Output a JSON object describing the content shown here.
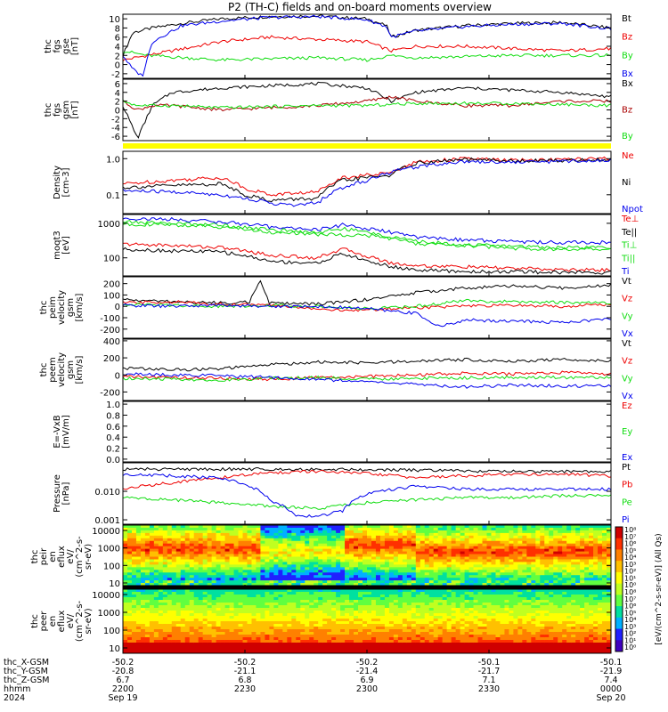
{
  "title": "P2 (TH-C) fields and on-board moments overview",
  "colors": {
    "black": "#000000",
    "red": "#ee0000",
    "green": "#11dd11",
    "blue": "#0000ee",
    "darkred": "#aa0000",
    "yellow": "#ffff00"
  },
  "chart_data": [
    {
      "id": "fgs_gse",
      "type": "line",
      "ylabel": [
        "thc",
        "fgs",
        "gse",
        "[nT]"
      ],
      "yticks": [
        "10",
        "8",
        "6",
        "4",
        "2",
        "0",
        "-2"
      ],
      "ylim": [
        -3,
        11
      ],
      "series": [
        {
          "name": "Bt",
          "color": "#000000",
          "x": [
            0,
            0.02,
            0.06,
            0.12,
            0.2,
            0.3,
            0.4,
            0.5,
            0.54,
            0.55,
            0.6,
            0.7,
            0.8,
            0.9,
            1.0
          ],
          "values": [
            2,
            7,
            8,
            9,
            10,
            10.5,
            10.6,
            10,
            8.5,
            6,
            7.5,
            8.5,
            9,
            9.2,
            8
          ]
        },
        {
          "name": "Bz",
          "color": "#ee0000",
          "x": [
            0,
            0.05,
            0.2,
            0.3,
            0.4,
            0.5,
            0.55,
            0.6,
            0.7,
            0.8,
            0.9,
            1.0
          ],
          "values": [
            1,
            2,
            5,
            6,
            5.5,
            5,
            3,
            4,
            4,
            3.5,
            3,
            3.5
          ]
        },
        {
          "name": "By",
          "color": "#11dd11",
          "x": [
            0,
            0.05,
            0.2,
            0.4,
            0.5,
            0.55,
            0.6,
            0.8,
            1.0
          ],
          "values": [
            3,
            2,
            1,
            1.5,
            1,
            2,
            1.5,
            2,
            2
          ]
        },
        {
          "name": "Bx",
          "color": "#0000ee",
          "x": [
            0,
            0.02,
            0.04,
            0.06,
            0.12,
            0.2,
            0.3,
            0.4,
            0.5,
            0.54,
            0.55,
            0.6,
            0.7,
            0.8,
            0.9,
            1.0
          ],
          "values": [
            2,
            -1,
            -2.5,
            5,
            8.5,
            9.5,
            10.3,
            10.5,
            9.8,
            8.3,
            6,
            7.3,
            8.3,
            8.8,
            9,
            7.8
          ]
        }
      ]
    },
    {
      "id": "fgs_gsm",
      "type": "line",
      "ylabel": [
        "thc",
        "fgs",
        "gsm",
        "[nT]"
      ],
      "yticks": [
        "6",
        "4",
        "2",
        "0",
        "-2",
        "-4",
        "-6"
      ],
      "ylim": [
        -7,
        7
      ],
      "series": [
        {
          "name": "Bx",
          "color": "#000000",
          "x": [
            0,
            0.03,
            0.06,
            0.1,
            0.2,
            0.3,
            0.4,
            0.5,
            0.55,
            0.6,
            0.7,
            0.8,
            0.9,
            1.0
          ],
          "values": [
            1,
            -6.5,
            1,
            4,
            5,
            5.5,
            6,
            5,
            2,
            4,
            5,
            4.5,
            4,
            3
          ]
        },
        {
          "name": "Bz",
          "color": "#aa0000",
          "x": [
            0,
            0.03,
            0.06,
            0.1,
            0.2,
            0.3,
            0.4,
            0.5,
            0.55,
            0.6,
            0.7,
            0.8,
            0.9,
            1.0
          ],
          "values": [
            2,
            0,
            1,
            1,
            0,
            0.5,
            1,
            2,
            3,
            2,
            1,
            1,
            2,
            2
          ]
        },
        {
          "name": "By",
          "color": "#11dd11",
          "x": [
            0,
            0.03,
            0.1,
            0.2,
            0.4,
            0.5,
            0.6,
            0.8,
            1.0
          ],
          "values": [
            2,
            1,
            1,
            0.5,
            1,
            1,
            1.5,
            1.5,
            1
          ]
        }
      ]
    },
    {
      "id": "density",
      "type": "line",
      "yscale": "log",
      "ylabel": [
        "Density",
        "[cm-3]"
      ],
      "yticks": [
        "1.0",
        "0.1"
      ],
      "ylim": [
        0.03,
        1.6
      ],
      "series": [
        {
          "name": "Ne",
          "color": "#ee0000",
          "x": [
            0,
            0.1,
            0.2,
            0.25,
            0.3,
            0.4,
            0.45,
            0.5,
            0.55,
            0.6,
            0.7,
            0.8,
            0.9,
            1.0
          ],
          "values": [
            0.2,
            0.25,
            0.3,
            0.15,
            0.1,
            0.12,
            0.3,
            0.35,
            0.4,
            0.8,
            1.0,
            0.9,
            0.95,
            1.0
          ]
        },
        {
          "name": "Ni",
          "color": "#000000",
          "x": [
            0,
            0.1,
            0.2,
            0.25,
            0.3,
            0.4,
            0.45,
            0.5,
            0.55,
            0.6,
            0.7,
            0.8,
            0.9,
            1.0
          ],
          "values": [
            0.16,
            0.18,
            0.2,
            0.1,
            0.07,
            0.08,
            0.25,
            0.3,
            0.35,
            0.75,
            0.95,
            0.85,
            0.9,
            0.95
          ]
        },
        {
          "name": "Npot",
          "color": "#0000ee",
          "x": [
            0,
            0.1,
            0.2,
            0.3,
            0.35,
            0.4,
            0.5,
            0.6,
            0.7,
            0.8,
            0.9,
            1.0
          ],
          "values": [
            0.13,
            0.12,
            0.1,
            0.06,
            0.05,
            0.06,
            0.25,
            0.6,
            0.85,
            0.8,
            0.85,
            0.9
          ]
        }
      ]
    },
    {
      "id": "temperature",
      "type": "line",
      "yscale": "log",
      "ylabel": [
        "moqt3",
        "[eV]"
      ],
      "yticks": [
        "1000",
        "100"
      ],
      "ylim": [
        30,
        1800
      ],
      "series": [
        {
          "name": "Te⊥",
          "color": "#ee0000",
          "x": [
            0,
            0.1,
            0.2,
            0.3,
            0.4,
            0.45,
            0.5,
            0.55,
            0.6,
            0.7,
            0.8,
            0.9,
            1.0
          ],
          "values": [
            250,
            230,
            200,
            120,
            100,
            180,
            110,
            70,
            60,
            55,
            50,
            45,
            45
          ]
        },
        {
          "name": "Te||",
          "color": "#000000",
          "x": [
            0,
            0.1,
            0.2,
            0.3,
            0.4,
            0.45,
            0.5,
            0.55,
            0.6,
            0.7,
            0.8,
            0.9,
            1.0
          ],
          "values": [
            180,
            160,
            150,
            80,
            70,
            130,
            80,
            55,
            45,
            40,
            40,
            38,
            38
          ]
        },
        {
          "name": "Ti⊥",
          "color": "#11dd11",
          "x": [
            0,
            0.1,
            0.2,
            0.3,
            0.4,
            0.45,
            0.5,
            0.55,
            0.6,
            0.7,
            0.8,
            0.9,
            1.0
          ],
          "values": [
            1100,
            1000,
            900,
            650,
            550,
            700,
            550,
            400,
            300,
            240,
            220,
            200,
            200
          ]
        },
        {
          "name": "Ti||",
          "color": "#11dd11",
          "x": [
            0,
            0.1,
            0.2,
            0.3,
            0.4,
            0.5,
            0.6,
            0.8,
            1.0
          ],
          "values": [
            950,
            900,
            800,
            550,
            480,
            450,
            260,
            190,
            170
          ]
        },
        {
          "name": "Ti",
          "color": "#0000ee",
          "x": [
            0,
            0.1,
            0.2,
            0.3,
            0.4,
            0.45,
            0.5,
            0.55,
            0.6,
            0.7,
            0.8,
            0.9,
            1.0
          ],
          "values": [
            1400,
            1300,
            1100,
            800,
            650,
            900,
            700,
            550,
            400,
            330,
            300,
            280,
            280
          ]
        }
      ]
    },
    {
      "id": "peim_velocity",
      "type": "line",
      "ylabel": [
        "thc",
        "peim",
        "velocity",
        "gsm",
        "[km/s]"
      ],
      "yticks": [
        "200",
        "100",
        "0",
        "-100",
        "-200"
      ],
      "ylim": [
        -280,
        260
      ],
      "series": [
        {
          "name": "Vt",
          "color": "#000000",
          "x": [
            0,
            0.1,
            0.2,
            0.26,
            0.28,
            0.3,
            0.4,
            0.5,
            0.6,
            0.7,
            0.8,
            0.9,
            1.0
          ],
          "values": [
            60,
            40,
            30,
            40,
            230,
            30,
            20,
            60,
            120,
            160,
            180,
            160,
            190
          ]
        },
        {
          "name": "Vz",
          "color": "#ee0000",
          "x": [
            0,
            0.1,
            0.2,
            0.3,
            0.4,
            0.45,
            0.5,
            0.6,
            0.7,
            0.8,
            0.9,
            1.0
          ],
          "values": [
            30,
            40,
            20,
            10,
            -20,
            -40,
            -30,
            -10,
            0,
            10,
            0,
            20
          ]
        },
        {
          "name": "Vy",
          "color": "#11dd11",
          "x": [
            0,
            0.1,
            0.2,
            0.3,
            0.4,
            0.5,
            0.6,
            0.7,
            0.8,
            1.0
          ],
          "values": [
            20,
            10,
            0,
            10,
            0,
            -20,
            0,
            50,
            40,
            30
          ]
        },
        {
          "name": "Vx",
          "color": "#0000ee",
          "x": [
            0,
            0.1,
            0.2,
            0.3,
            0.4,
            0.5,
            0.6,
            0.65,
            0.7,
            0.8,
            0.9,
            1.0
          ],
          "values": [
            10,
            0,
            10,
            0,
            0,
            -20,
            -60,
            -180,
            -120,
            -130,
            -140,
            -110
          ]
        }
      ]
    },
    {
      "id": "peem_velocity",
      "type": "line",
      "ylabel": [
        "thc",
        "peem",
        "velocity",
        "gsm",
        "[km/s]"
      ],
      "yticks": [
        "400",
        "200",
        "0",
        "-200"
      ],
      "ylim": [
        -300,
        420
      ],
      "series": [
        {
          "name": "Vt",
          "color": "#000000",
          "x": [
            0,
            0.1,
            0.2,
            0.3,
            0.4,
            0.5,
            0.6,
            0.7,
            0.8,
            0.9,
            1.0
          ],
          "values": [
            80,
            60,
            70,
            120,
            150,
            140,
            160,
            180,
            160,
            180,
            170
          ]
        },
        {
          "name": "Vz",
          "color": "#ee0000",
          "x": [
            0,
            0.1,
            0.2,
            0.3,
            0.4,
            0.5,
            0.6,
            0.7,
            0.8,
            0.9,
            1.0
          ],
          "values": [
            -20,
            -30,
            -40,
            -50,
            -30,
            -20,
            0,
            20,
            10,
            30,
            10
          ]
        },
        {
          "name": "Vy",
          "color": "#11dd11",
          "x": [
            0,
            0.1,
            0.2,
            0.3,
            0.4,
            0.5,
            0.6,
            0.8,
            1.0
          ],
          "values": [
            -40,
            -50,
            -60,
            -40,
            -30,
            -50,
            -40,
            -30,
            -30
          ]
        },
        {
          "name": "Vx",
          "color": "#0000ee",
          "x": [
            0,
            0.1,
            0.2,
            0.3,
            0.4,
            0.5,
            0.6,
            0.7,
            0.8,
            0.9,
            1.0
          ],
          "values": [
            10,
            0,
            -10,
            -30,
            -50,
            -80,
            -110,
            -140,
            -120,
            -130,
            -130
          ]
        }
      ]
    },
    {
      "id": "efield",
      "type": "line",
      "ylabel": [
        "E=-VxB",
        "[mV/m]"
      ],
      "yticks": [
        "1.0",
        "0.8",
        "0.6",
        "0.4",
        "0.2",
        "0.0"
      ],
      "ylim": [
        -0.05,
        1.05
      ],
      "series": [
        {
          "name": "Ez",
          "color": "#ee0000",
          "x": [],
          "values": []
        },
        {
          "name": "Ey",
          "color": "#11dd11",
          "x": [],
          "values": []
        },
        {
          "name": "Ex",
          "color": "#0000ee",
          "x": [],
          "values": []
        }
      ]
    },
    {
      "id": "pressure",
      "type": "line",
      "yscale": "log",
      "ylabel": [
        "Pressure",
        "[nPa]"
      ],
      "yticks": [
        "0.010",
        "0.001"
      ],
      "ylim": [
        0.0007,
        0.1
      ],
      "series": [
        {
          "name": "Pt",
          "color": "#000000",
          "x": [
            0,
            0.2,
            0.4,
            0.6,
            0.8,
            1.0
          ],
          "values": [
            0.06,
            0.06,
            0.06,
            0.055,
            0.05,
            0.05
          ]
        },
        {
          "name": "Pb",
          "color": "#ee0000",
          "x": [
            0,
            0.1,
            0.2,
            0.3,
            0.4,
            0.5,
            0.6,
            0.7,
            0.8,
            0.9,
            1.0
          ],
          "values": [
            0.012,
            0.02,
            0.03,
            0.045,
            0.05,
            0.042,
            0.03,
            0.035,
            0.04,
            0.04,
            0.035
          ]
        },
        {
          "name": "Pe",
          "color": "#11dd11",
          "x": [
            0,
            0.1,
            0.2,
            0.3,
            0.4,
            0.5,
            0.6,
            0.7,
            0.8,
            0.9,
            1.0
          ],
          "values": [
            0.006,
            0.005,
            0.004,
            0.003,
            0.0025,
            0.004,
            0.005,
            0.006,
            0.006,
            0.007,
            0.007
          ]
        },
        {
          "name": "Pi",
          "color": "#0000ee",
          "x": [
            0,
            0.1,
            0.2,
            0.3,
            0.35,
            0.4,
            0.45,
            0.5,
            0.6,
            0.7,
            0.8,
            0.9,
            1.0
          ],
          "values": [
            0.04,
            0.035,
            0.03,
            0.005,
            0.0015,
            0.0013,
            0.002,
            0.008,
            0.015,
            0.012,
            0.012,
            0.012,
            0.012
          ]
        }
      ]
    },
    {
      "id": "peir_eflux",
      "type": "heatmap",
      "ylabel": [
        "thc",
        "peir",
        "en",
        "eflux",
        "eV/",
        "(cm^2-s-",
        "sr-eV)"
      ],
      "yticks": [
        "10000",
        "1000",
        "100",
        "10"
      ]
    },
    {
      "id": "peer_eflux",
      "type": "heatmap",
      "ylabel": [
        "thc",
        "peer",
        "en",
        "eflux",
        "eV/",
        "(cm^2-s-",
        "sr-eV)"
      ],
      "yticks": [
        "10000",
        "1000",
        "100",
        "10"
      ]
    }
  ],
  "colorbar": {
    "label": "[eV/(cm^2-s-sr-eV)] (All Qs)",
    "ticks": [
      "10⁸",
      "10⁷",
      "10⁶",
      "10⁵",
      "10⁴",
      "10³",
      "10²",
      "10¹",
      "10⁰"
    ]
  },
  "xaxis": {
    "row_labels": [
      "thc_X-GSM",
      "thc_Y-GSM",
      "thc_Z-GSM",
      "hhmm",
      "2024"
    ],
    "ticks": [
      {
        "x": 0.0,
        "rows": [
          "-50.2",
          "-20.8",
          "6.7",
          "2200",
          "Sep 19"
        ]
      },
      {
        "x": 0.25,
        "rows": [
          "-50.2",
          "-21.1",
          "6.8",
          "2230",
          ""
        ]
      },
      {
        "x": 0.5,
        "rows": [
          "-50.2",
          "-21.4",
          "6.9",
          "2300",
          ""
        ]
      },
      {
        "x": 0.75,
        "rows": [
          "-50.1",
          "-21.7",
          "7.1",
          "2330",
          ""
        ]
      },
      {
        "x": 1.0,
        "rows": [
          "-50.1",
          "-21.9",
          "7.4",
          "0000",
          "Sep 20"
        ]
      }
    ]
  }
}
